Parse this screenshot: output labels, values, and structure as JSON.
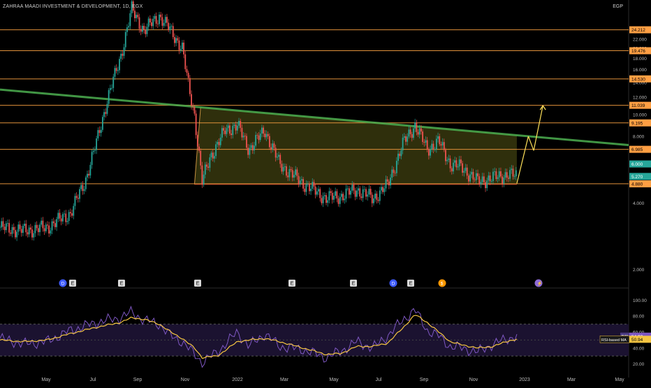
{
  "symbol_title": "ZAHRAA MAADI INVESTMENT & DEVELOPMENT, 1D, EGX",
  "currency": "EGP",
  "colors": {
    "background": "#000000",
    "level_line": "#e0913a",
    "level_tag": "#ff9f43",
    "trendline": "#4caf50",
    "triangle_fill": "#3f3f10",
    "triangle_edge": "#c79040",
    "arrow": "#ffe25a",
    "candle_up": "#26a69a",
    "candle_down": "#ef5350",
    "rsi_line": "#7e57c2",
    "rsi_ma_line": "#f5c542",
    "rsi_band": "#1b1230"
  },
  "chart_data": [
    {
      "type": "candlestick",
      "panel": "price",
      "y_scale": "log",
      "ylim": [
        1.7,
        33
      ],
      "y_ticks": [
        "2.000",
        "4.000",
        "6.000",
        "8.000",
        "10.000",
        "12.000",
        "14.000",
        "16.000",
        "18.000",
        "20.000",
        "22.000"
      ],
      "x_labels": [
        "May",
        "Jul",
        "Sep",
        "Nov",
        "2022",
        "Mar",
        "May",
        "Jul",
        "Sep",
        "Nov",
        "2023",
        "Mar",
        "May"
      ],
      "horizontal_levels": [
        "24.212",
        "19.476",
        "14.530",
        "11.039",
        "9.195",
        "6.985",
        "4.880"
      ],
      "price_tags": [
        {
          "label": "5.270",
          "value": 5.27,
          "color": "#26a69a"
        },
        {
          "label": "6.000",
          "value": 6.0,
          "color": "#26a69a"
        }
      ],
      "trendline": {
        "start": [
          "2021-03-01",
          13.0
        ],
        "end": [
          "2023-05-31",
          7.3
        ]
      },
      "projection_arrows": [
        {
          "from": [
            "2023-01-05",
            4.9
          ],
          "to": [
            "2023-01-20",
            8.0
          ]
        },
        {
          "from": [
            "2023-01-20",
            8.0
          ],
          "to": [
            "2023-01-27",
            6.9
          ]
        },
        {
          "from": [
            "2023-01-27",
            6.9
          ],
          "to": [
            "2023-02-08",
            11.0
          ]
        }
      ],
      "event_markers": [
        "D",
        "E",
        "E",
        "E",
        "E",
        "E",
        "D",
        "E",
        "$",
        "⚡"
      ],
      "close_path": [
        [
          "2021-03-01",
          3.1
        ],
        [
          "2021-04-01",
          3.0
        ],
        [
          "2021-05-01",
          3.1
        ],
        [
          "2021-06-01",
          3.6
        ],
        [
          "2021-06-20",
          5.0
        ],
        [
          "2021-07-05",
          7.5
        ],
        [
          "2021-07-20",
          12.0
        ],
        [
          "2021-08-05",
          18.0
        ],
        [
          "2021-08-20",
          30.0
        ],
        [
          "2021-09-05",
          24.0
        ],
        [
          "2021-09-25",
          28.0
        ],
        [
          "2021-10-10",
          24.0
        ],
        [
          "2021-10-25",
          20.0
        ],
        [
          "2021-11-03",
          13.0
        ],
        [
          "2021-11-10",
          10.0
        ],
        [
          "2021-11-20",
          5.0
        ],
        [
          "2021-12-01",
          6.5
        ],
        [
          "2021-12-20",
          8.5
        ],
        [
          "2022-01-05",
          9.0
        ],
        [
          "2022-01-20",
          7.0
        ],
        [
          "2022-02-10",
          8.5
        ],
        [
          "2022-03-01",
          6.0
        ],
        [
          "2022-04-01",
          4.9
        ],
        [
          "2022-05-01",
          4.2
        ],
        [
          "2022-05-20",
          4.3
        ],
        [
          "2022-06-10",
          4.6
        ],
        [
          "2022-07-01",
          4.2
        ],
        [
          "2022-07-20",
          4.8
        ],
        [
          "2022-08-10",
          7.5
        ],
        [
          "2022-08-25",
          9.0
        ],
        [
          "2022-09-10",
          7.0
        ],
        [
          "2022-09-25",
          7.6
        ],
        [
          "2022-10-10",
          6.0
        ],
        [
          "2022-10-25",
          5.8
        ],
        [
          "2022-11-15",
          5.0
        ],
        [
          "2022-12-05",
          5.2
        ],
        [
          "2022-12-25",
          5.4
        ],
        [
          "2023-01-05",
          5.27
        ]
      ]
    },
    {
      "type": "line",
      "panel": "rsi",
      "ylim": [
        10,
        110
      ],
      "y_ticks": [
        "100.00",
        "80.00",
        "60.00",
        "40.00",
        "20.00"
      ],
      "band": [
        30,
        70
      ],
      "series": [
        {
          "name": "RSI",
          "last_label": "54.92",
          "color": "#7e57c2"
        },
        {
          "name": "RSI-based MA",
          "last_label": "50.94",
          "color": "#f5c542"
        }
      ],
      "rsi_path": [
        [
          "2021-03-01",
          52
        ],
        [
          "2021-04-01",
          45
        ],
        [
          "2021-05-01",
          48
        ],
        [
          "2021-06-01",
          62
        ],
        [
          "2021-07-05",
          72
        ],
        [
          "2021-08-05",
          78
        ],
        [
          "2021-08-20",
          85
        ],
        [
          "2021-09-05",
          75
        ],
        [
          "2021-09-25",
          70
        ],
        [
          "2021-10-10",
          55
        ],
        [
          "2021-10-25",
          48
        ],
        [
          "2021-11-10",
          32
        ],
        [
          "2021-11-20",
          22
        ],
        [
          "2021-12-10",
          35
        ],
        [
          "2022-01-05",
          60
        ],
        [
          "2022-01-20",
          42
        ],
        [
          "2022-02-10",
          58
        ],
        [
          "2022-03-01",
          42
        ],
        [
          "2022-04-01",
          38
        ],
        [
          "2022-05-01",
          28
        ],
        [
          "2022-05-20",
          36
        ],
        [
          "2022-06-10",
          48
        ],
        [
          "2022-07-01",
          40
        ],
        [
          "2022-07-20",
          55
        ],
        [
          "2022-08-10",
          76
        ],
        [
          "2022-08-25",
          88
        ],
        [
          "2022-09-10",
          62
        ],
        [
          "2022-09-25",
          55
        ],
        [
          "2022-10-10",
          42
        ],
        [
          "2022-10-25",
          40
        ],
        [
          "2022-11-15",
          35
        ],
        [
          "2022-12-05",
          45
        ],
        [
          "2022-12-25",
          52
        ],
        [
          "2023-01-05",
          54.92
        ]
      ],
      "ma_path": [
        [
          "2021-03-01",
          50
        ],
        [
          "2021-04-01",
          48
        ],
        [
          "2021-05-01",
          50
        ],
        [
          "2021-06-01",
          58
        ],
        [
          "2021-07-05",
          66
        ],
        [
          "2021-08-05",
          72
        ],
        [
          "2021-08-20",
          78
        ],
        [
          "2021-09-05",
          76
        ],
        [
          "2021-09-25",
          70
        ],
        [
          "2021-10-10",
          60
        ],
        [
          "2021-10-25",
          52
        ],
        [
          "2021-11-10",
          40
        ],
        [
          "2021-11-20",
          28
        ],
        [
          "2021-12-10",
          30
        ],
        [
          "2022-01-05",
          48
        ],
        [
          "2022-01-20",
          50
        ],
        [
          "2022-02-10",
          52
        ],
        [
          "2022-03-01",
          48
        ],
        [
          "2022-04-01",
          40
        ],
        [
          "2022-05-01",
          32
        ],
        [
          "2022-05-20",
          33
        ],
        [
          "2022-06-10",
          42
        ],
        [
          "2022-07-01",
          42
        ],
        [
          "2022-07-20",
          46
        ],
        [
          "2022-08-10",
          66
        ],
        [
          "2022-08-25",
          82
        ],
        [
          "2022-09-10",
          72
        ],
        [
          "2022-09-25",
          60
        ],
        [
          "2022-10-10",
          48
        ],
        [
          "2022-10-25",
          44
        ],
        [
          "2022-11-15",
          40
        ],
        [
          "2022-12-05",
          42
        ],
        [
          "2022-12-25",
          49
        ],
        [
          "2023-01-05",
          50.94
        ]
      ]
    }
  ]
}
